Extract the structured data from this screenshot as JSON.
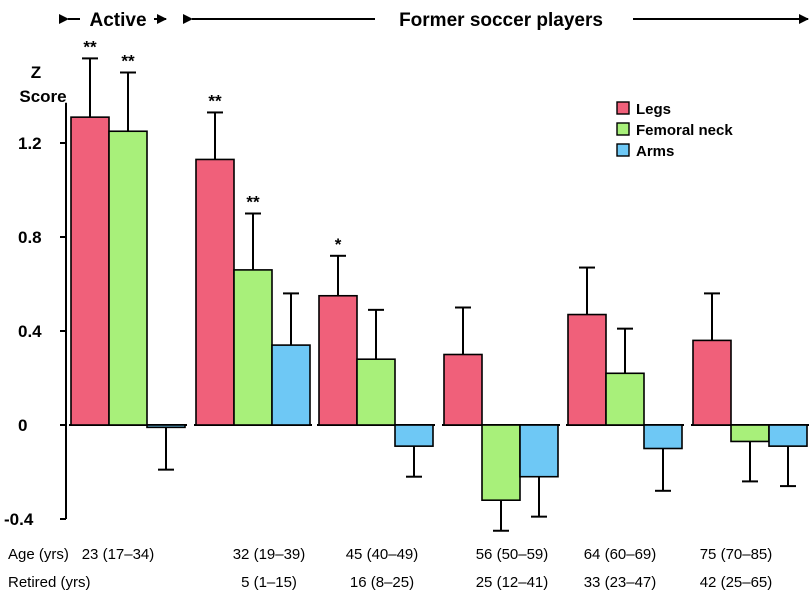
{
  "chart_data": {
    "type": "bar",
    "ylabel": [
      "Z",
      "Score"
    ],
    "ylim": [
      -0.4,
      1.35
    ],
    "yticks": [
      {
        "value": -0.4,
        "label": "-0.4"
      },
      {
        "value": 0,
        "label": "0"
      },
      {
        "value": 0.4,
        "label": "0.4"
      },
      {
        "value": 0.8,
        "label": "0.8"
      },
      {
        "value": 1.2,
        "label": "1.2"
      }
    ],
    "header": {
      "active": "Active",
      "former": "Former soccer players"
    },
    "row_titles": {
      "age": "Age (yrs)",
      "retired": "Retired (yrs)"
    },
    "legend": [
      {
        "name": "Legs",
        "color": "#f0607a"
      },
      {
        "name": "Femoral neck",
        "color": "#a8f07a"
      },
      {
        "name": "Arms",
        "color": "#6ec8f5"
      }
    ],
    "series_names": [
      "Legs",
      "Femoral neck",
      "Arms"
    ],
    "series_colors": [
      "#f0607a",
      "#a8f07a",
      "#6ec8f5"
    ],
    "groups": [
      {
        "age": "23 (17–34)",
        "retired": "",
        "values": [
          1.31,
          1.25,
          -0.01
        ],
        "errors": [
          0.25,
          0.25,
          0.18
        ],
        "stars": [
          "**",
          "**",
          ""
        ]
      },
      {
        "age": "32 (19–39)",
        "retired": "5 (1–15)",
        "values": [
          1.13,
          0.66,
          0.34
        ],
        "errors": [
          0.2,
          0.24,
          0.22
        ],
        "stars": [
          "**",
          "**",
          ""
        ]
      },
      {
        "age": "45 (40–49)",
        "retired": "16 (8–25)",
        "values": [
          0.55,
          0.28,
          -0.09
        ],
        "errors": [
          0.17,
          0.21,
          0.13
        ],
        "stars": [
          "*",
          "",
          ""
        ]
      },
      {
        "age": "56 (50–59)",
        "retired": "25 (12–41)",
        "values": [
          0.3,
          -0.32,
          -0.22
        ],
        "errors": [
          0.2,
          0.13,
          0.17
        ],
        "stars": [
          "",
          "",
          ""
        ]
      },
      {
        "age": "64 (60–69)",
        "retired": "33 (23–47)",
        "values": [
          0.47,
          0.22,
          -0.1
        ],
        "errors": [
          0.2,
          0.19,
          0.18
        ],
        "stars": [
          "",
          "",
          ""
        ]
      },
      {
        "age": "75 (70–85)",
        "retired": "42 (25–65)",
        "values": [
          0.36,
          -0.07,
          -0.09
        ],
        "errors": [
          0.2,
          0.17,
          0.17
        ],
        "stars": [
          "",
          "",
          ""
        ]
      }
    ]
  }
}
